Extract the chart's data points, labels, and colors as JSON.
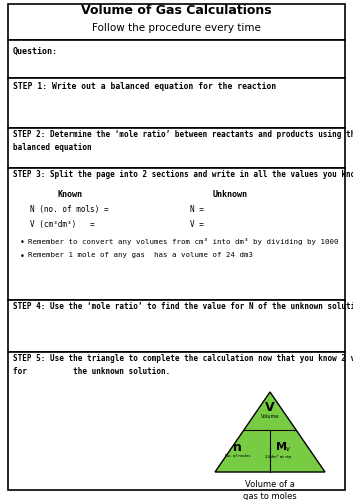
{
  "title": "Volume of Gas Calculations",
  "subtitle": "Follow the procedure every time",
  "bg_color": "#ffffff",
  "border_color": "#000000",
  "triangle_color": "#77cc44",
  "caption": "Volume of a\ngas to moles"
}
